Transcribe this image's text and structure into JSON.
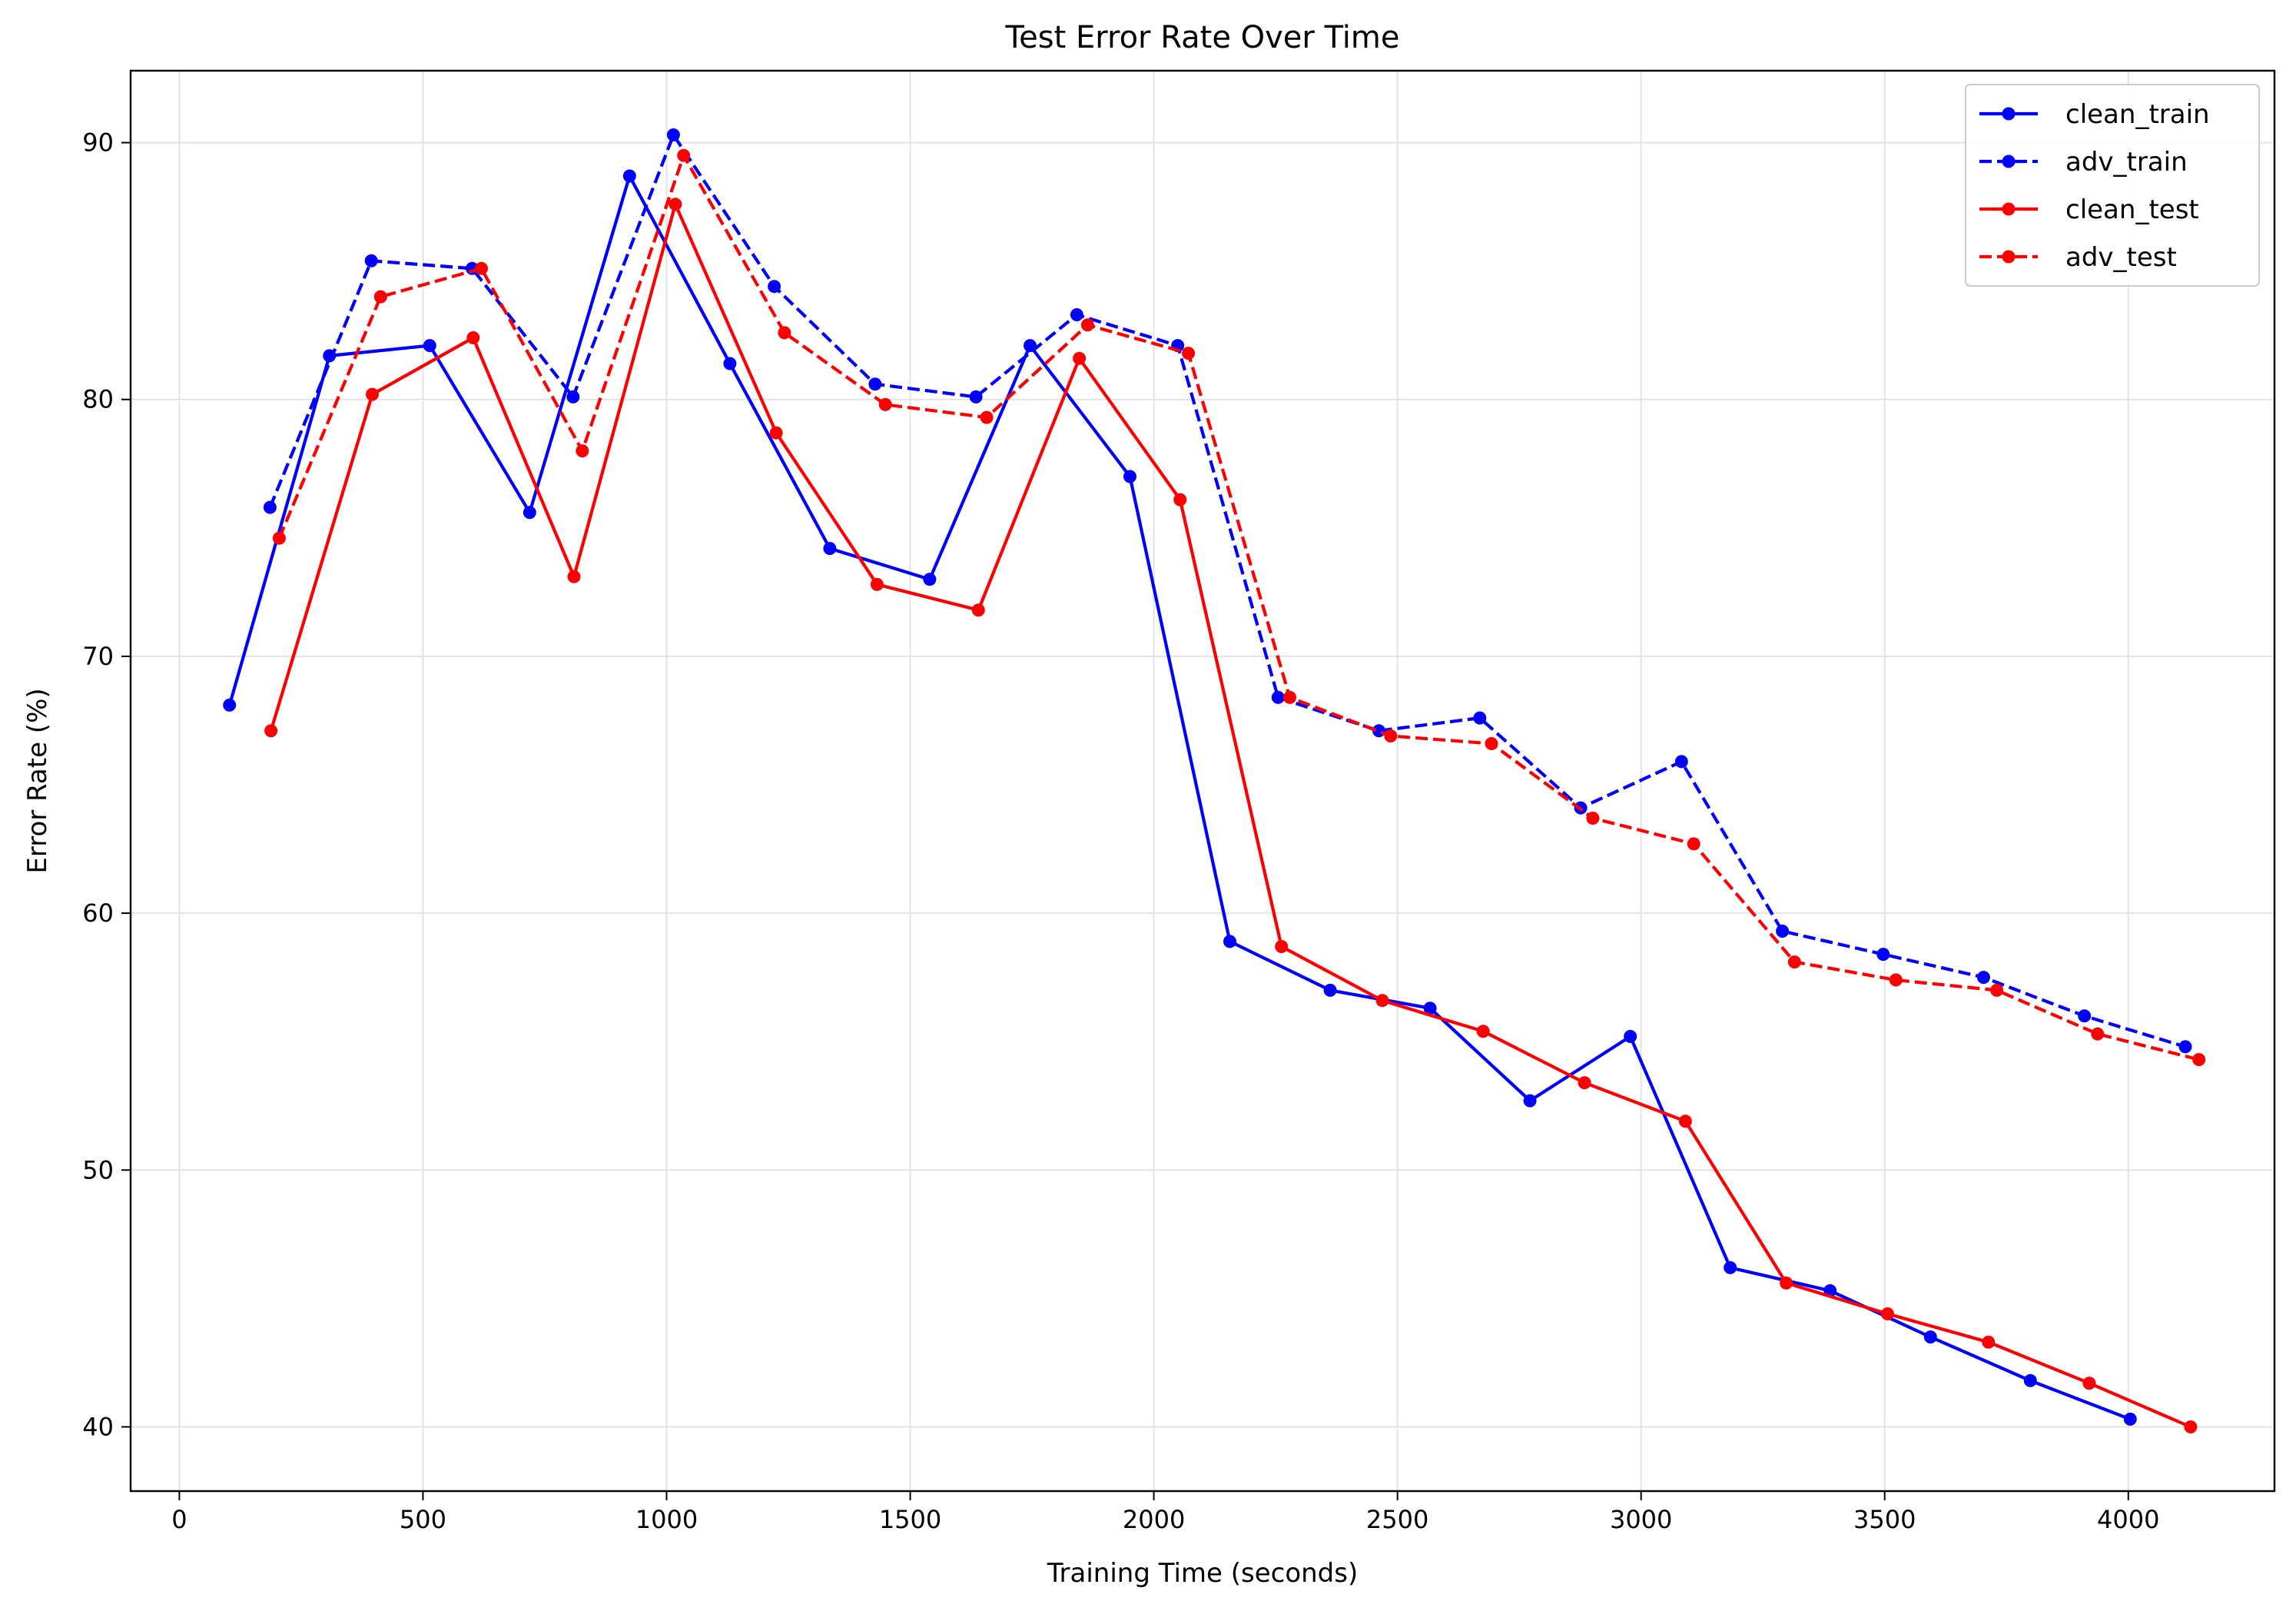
{
  "chart_data": {
    "type": "line",
    "title": "Test Error Rate Over Time",
    "xlabel": "Training Time (seconds)",
    "ylabel": "Error Rate (%)",
    "xlim": [
      -100,
      4300
    ],
    "ylim": [
      37.5,
      92.8
    ],
    "xticks": [
      0,
      500,
      1000,
      1500,
      2000,
      2500,
      3000,
      3500,
      4000
    ],
    "yticks": [
      40,
      50,
      60,
      70,
      80,
      90
    ],
    "grid": true,
    "legend_position": "top-right",
    "series": [
      {
        "name": "clean_train",
        "color": "#0000ff",
        "linestyle": "solid",
        "points": [
          [
            103,
            68.1
          ],
          [
            308,
            81.7
          ],
          [
            514,
            82.1
          ],
          [
            719,
            75.6
          ],
          [
            924,
            88.7
          ],
          [
            1130,
            81.4
          ],
          [
            1335,
            74.2
          ],
          [
            1540,
            73.0
          ],
          [
            1746,
            82.1
          ],
          [
            1951,
            77.0
          ],
          [
            2156,
            58.9
          ],
          [
            2362,
            57.0
          ],
          [
            2567,
            56.3
          ],
          [
            2772,
            52.7
          ],
          [
            2978,
            55.2
          ],
          [
            3183,
            46.2
          ],
          [
            3388,
            45.3
          ],
          [
            3594,
            43.5
          ],
          [
            3799,
            41.8
          ],
          [
            4004,
            40.3
          ]
        ]
      },
      {
        "name": "adv_train",
        "color": "#0000ff",
        "linestyle": "dashed",
        "points": [
          [
            186,
            75.8
          ],
          [
            394,
            85.4
          ],
          [
            601,
            85.1
          ],
          [
            808,
            80.1
          ],
          [
            1014,
            90.3
          ],
          [
            1221,
            84.4
          ],
          [
            1428,
            80.6
          ],
          [
            1635,
            80.1
          ],
          [
            1842,
            83.3
          ],
          [
            2049,
            82.1
          ],
          [
            2255,
            68.4
          ],
          [
            2462,
            67.1
          ],
          [
            2669,
            67.6
          ],
          [
            2876,
            64.1
          ],
          [
            3083,
            65.9
          ],
          [
            3290,
            59.3
          ],
          [
            3497,
            58.4
          ],
          [
            3703,
            57.5
          ],
          [
            3910,
            56.0
          ],
          [
            4117,
            54.8
          ]
        ]
      },
      {
        "name": "clean_test",
        "color": "#ff0000",
        "linestyle": "solid",
        "points": [
          [
            188,
            67.1
          ],
          [
            396,
            80.2
          ],
          [
            603,
            82.4
          ],
          [
            810,
            73.1
          ],
          [
            1018,
            87.6
          ],
          [
            1225,
            78.7
          ],
          [
            1432,
            72.8
          ],
          [
            1640,
            71.8
          ],
          [
            1847,
            81.6
          ],
          [
            2054,
            76.1
          ],
          [
            2262,
            58.7
          ],
          [
            2469,
            56.6
          ],
          [
            2676,
            55.4
          ],
          [
            2884,
            53.4
          ],
          [
            3091,
            51.9
          ],
          [
            3298,
            45.6
          ],
          [
            3506,
            44.4
          ],
          [
            3713,
            43.3
          ],
          [
            3920,
            41.7
          ],
          [
            4128,
            40.0
          ]
        ]
      },
      {
        "name": "adv_test",
        "color": "#ff0000",
        "linestyle": "dashed",
        "points": [
          [
            205,
            74.6
          ],
          [
            413,
            84.0
          ],
          [
            620,
            85.1
          ],
          [
            827,
            78.0
          ],
          [
            1035,
            89.5
          ],
          [
            1242,
            82.6
          ],
          [
            1449,
            79.8
          ],
          [
            1657,
            79.3
          ],
          [
            1864,
            82.9
          ],
          [
            2071,
            81.8
          ],
          [
            2279,
            68.4
          ],
          [
            2486,
            66.9
          ],
          [
            2693,
            66.6
          ],
          [
            2901,
            63.7
          ],
          [
            3108,
            62.7
          ],
          [
            3315,
            58.1
          ],
          [
            3523,
            57.4
          ],
          [
            3730,
            57.0
          ],
          [
            3937,
            55.3
          ],
          [
            4145,
            54.3
          ]
        ]
      }
    ]
  }
}
